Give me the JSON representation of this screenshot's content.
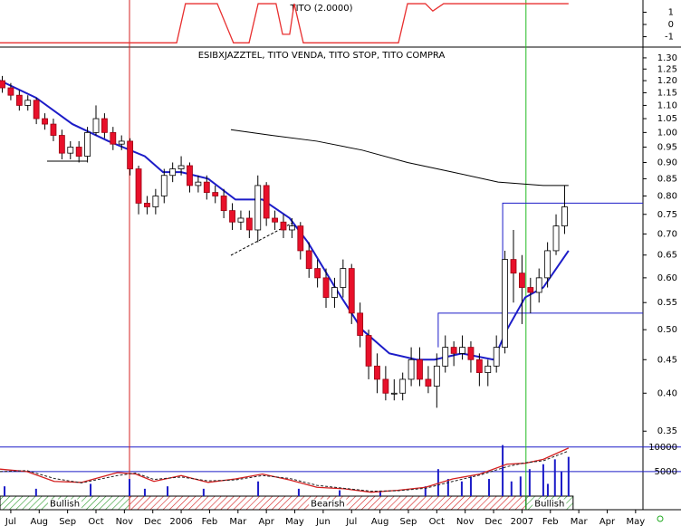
{
  "chart_data": {
    "type": "candlestick",
    "title": "ESIBXJAZZTEL, TITO VENDA, TITO STOP, TITO COMPRA",
    "log_scale": true,
    "xlim": [
      -0.38,
      22.26
    ],
    "xticks": [
      {
        "value": 0,
        "label": "Jul"
      },
      {
        "value": 1,
        "label": "Aug"
      },
      {
        "value": 2,
        "label": "Sep"
      },
      {
        "value": 3,
        "label": "Oct"
      },
      {
        "value": 4,
        "label": "Nov"
      },
      {
        "value": 5,
        "label": "Dec"
      },
      {
        "value": 6,
        "label": "2006"
      },
      {
        "value": 7,
        "label": "Feb"
      },
      {
        "value": 8,
        "label": "Mar"
      },
      {
        "value": 9,
        "label": "Apr"
      },
      {
        "value": 10,
        "label": "May"
      },
      {
        "value": 11,
        "label": "Jun"
      },
      {
        "value": 12,
        "label": "Jul"
      },
      {
        "value": 13,
        "label": "Aug"
      },
      {
        "value": 14,
        "label": "Sep"
      },
      {
        "value": 15,
        "label": "Oct"
      },
      {
        "value": 16,
        "label": "Nov"
      },
      {
        "value": 17,
        "label": "Dec"
      },
      {
        "value": 18,
        "label": "2007"
      },
      {
        "value": 19,
        "label": "Feb"
      },
      {
        "value": 20,
        "label": "Mar"
      },
      {
        "value": 21,
        "label": "Apr"
      },
      {
        "value": 22,
        "label": "May"
      }
    ],
    "ylim": [
      0.335,
      1.346
    ],
    "yticks": [
      {
        "value": 1.3,
        "label": "1.30"
      },
      {
        "value": 1.25,
        "label": "1.25"
      },
      {
        "value": 1.2,
        "label": "1.20"
      },
      {
        "value": 1.15,
        "label": "1.15"
      },
      {
        "value": 1.1,
        "label": "1.10"
      },
      {
        "value": 1.05,
        "label": "1.05"
      },
      {
        "value": 1.0,
        "label": "1.00"
      },
      {
        "value": 0.95,
        "label": "0.95"
      },
      {
        "value": 0.9,
        "label": "0.90"
      },
      {
        "value": 0.85,
        "label": "0.85"
      },
      {
        "value": 0.8,
        "label": "0.80"
      },
      {
        "value": 0.75,
        "label": "0.75"
      },
      {
        "value": 0.7,
        "label": "0.70"
      },
      {
        "value": 0.65,
        "label": "0.65"
      },
      {
        "value": 0.6,
        "label": "0.60"
      },
      {
        "value": 0.55,
        "label": "0.55"
      },
      {
        "value": 0.5,
        "label": "0.50"
      },
      {
        "value": 0.45,
        "label": "0.45"
      },
      {
        "value": 0.4,
        "label": "0.40"
      },
      {
        "value": 0.35,
        "label": "0.35"
      }
    ],
    "x": [
      -0.3,
      0,
      0.3,
      0.6,
      0.9,
      1.2,
      1.5,
      1.8,
      2.1,
      2.4,
      2.7,
      3,
      3.3,
      3.6,
      3.9,
      4.2,
      4.5,
      4.8,
      5.1,
      5.4,
      5.7,
      6,
      6.3,
      6.6,
      6.9,
      7.2,
      7.5,
      7.8,
      8.1,
      8.4,
      8.7,
      9,
      9.3,
      9.6,
      9.9,
      10.2,
      10.5,
      10.8,
      11.1,
      11.4,
      11.7,
      12,
      12.3,
      12.6,
      12.9,
      13.2,
      13.5,
      13.8,
      14.1,
      14.4,
      14.7,
      15,
      15.3,
      15.6,
      15.9,
      16.2,
      16.5,
      16.8,
      17.1,
      17.4,
      17.7,
      18,
      18.3,
      18.6,
      18.9,
      19.2,
      19.5
    ],
    "open": [
      1.2,
      1.17,
      1.14,
      1.1,
      1.12,
      1.05,
      1.03,
      0.99,
      0.93,
      0.95,
      0.92,
      1.0,
      1.05,
      1.0,
      0.96,
      0.97,
      0.88,
      0.78,
      0.77,
      0.8,
      0.86,
      0.88,
      0.89,
      0.83,
      0.84,
      0.81,
      0.8,
      0.76,
      0.73,
      0.74,
      0.71,
      0.83,
      0.74,
      0.73,
      0.71,
      0.72,
      0.66,
      0.62,
      0.6,
      0.56,
      0.58,
      0.62,
      0.53,
      0.49,
      0.44,
      0.42,
      0.4,
      0.4,
      0.42,
      0.45,
      0.42,
      0.41,
      0.44,
      0.47,
      0.46,
      0.47,
      0.45,
      0.43,
      0.44,
      0.47,
      0.64,
      0.61,
      0.58,
      0.57,
      0.6,
      0.66,
      0.72
    ],
    "high": [
      1.22,
      1.19,
      1.16,
      1.14,
      1.13,
      1.07,
      1.05,
      1.01,
      0.97,
      0.97,
      1.02,
      1.1,
      1.07,
      1.02,
      0.99,
      0.98,
      0.89,
      0.8,
      0.82,
      0.88,
      0.9,
      0.92,
      0.9,
      0.86,
      0.86,
      0.83,
      0.82,
      0.78,
      0.76,
      0.76,
      0.86,
      0.84,
      0.76,
      0.75,
      0.74,
      0.73,
      0.68,
      0.64,
      0.62,
      0.6,
      0.64,
      0.63,
      0.55,
      0.5,
      0.46,
      0.44,
      0.42,
      0.43,
      0.47,
      0.47,
      0.44,
      0.46,
      0.49,
      0.48,
      0.49,
      0.48,
      0.46,
      0.45,
      0.49,
      0.66,
      0.71,
      0.65,
      0.6,
      0.62,
      0.68,
      0.75,
      0.83
    ],
    "low": [
      1.15,
      1.12,
      1.08,
      1.08,
      1.03,
      1.01,
      0.97,
      0.91,
      0.91,
      0.9,
      0.9,
      0.99,
      0.98,
      0.94,
      0.94,
      0.86,
      0.75,
      0.75,
      0.75,
      0.78,
      0.84,
      0.86,
      0.81,
      0.81,
      0.79,
      0.78,
      0.74,
      0.71,
      0.71,
      0.69,
      0.68,
      0.72,
      0.71,
      0.69,
      0.69,
      0.64,
      0.6,
      0.58,
      0.54,
      0.54,
      0.56,
      0.51,
      0.47,
      0.42,
      0.4,
      0.39,
      0.39,
      0.39,
      0.41,
      0.41,
      0.4,
      0.38,
      0.43,
      0.44,
      0.45,
      0.43,
      0.41,
      0.41,
      0.43,
      0.46,
      0.55,
      0.51,
      0.53,
      0.55,
      0.58,
      0.65,
      0.7
    ],
    "close": [
      1.17,
      1.14,
      1.1,
      1.12,
      1.05,
      1.03,
      0.99,
      0.93,
      0.95,
      0.92,
      1.0,
      1.05,
      1.0,
      0.96,
      0.97,
      0.88,
      0.78,
      0.77,
      0.8,
      0.86,
      0.88,
      0.89,
      0.83,
      0.84,
      0.81,
      0.8,
      0.76,
      0.73,
      0.74,
      0.71,
      0.83,
      0.74,
      0.73,
      0.71,
      0.72,
      0.66,
      0.62,
      0.6,
      0.56,
      0.58,
      0.62,
      0.53,
      0.49,
      0.44,
      0.42,
      0.4,
      0.4,
      0.42,
      0.45,
      0.42,
      0.41,
      0.44,
      0.47,
      0.46,
      0.47,
      0.45,
      0.43,
      0.44,
      0.47,
      0.64,
      0.61,
      0.58,
      0.57,
      0.6,
      0.66,
      0.72,
      0.77
    ],
    "up_color": "#ffffff",
    "down_color": "#e8102a",
    "lines": [
      {
        "color": "#1c1cc8",
        "x": [
          -0.38,
          0.89,
          2.17,
          3.44,
          4.72,
          5.36,
          6.0,
          6.95,
          7.91,
          8.86,
          9.82,
          10.46,
          11.42,
          12.37,
          13.33,
          14.29,
          14.92,
          15.88,
          17.0,
          17.47,
          18.11,
          18.75,
          19.64
        ],
        "values": [
          1.2,
          1.13,
          1.03,
          0.97,
          0.92,
          0.87,
          0.87,
          0.85,
          0.79,
          0.79,
          0.74,
          0.68,
          0.58,
          0.5,
          0.46,
          0.45,
          0.45,
          0.46,
          0.45,
          0.5,
          0.56,
          0.58,
          0.66
        ]
      },
      {
        "color": "#000000",
        "x": [
          7.75,
          9.18,
          10.78,
          12.37,
          13.97,
          15.56,
          17.16,
          18.75,
          19.64
        ],
        "values": [
          1.01,
          0.99,
          0.97,
          0.94,
          0.9,
          0.87,
          0.84,
          0.83,
          0.83
        ]
      }
    ],
    "levels": [
      {
        "y": 0.78,
        "x": 17.32,
        "y0": 0.5,
        "color": "#1c1cc8"
      },
      {
        "y": 0.53,
        "x": 15.05,
        "y0": 0.47,
        "color": "#1c1cc8"
      }
    ],
    "vlines": [
      {
        "x": 4.18,
        "color": "#d42020"
      },
      {
        "x": 18.14,
        "color": "#22bb22"
      }
    ],
    "indicator": {
      "title": "TITO (2.0000)",
      "ylim": [
        -1.7,
        2.0
      ],
      "yticks": [
        1,
        0,
        -1
      ],
      "color": "#e83030",
      "x": [
        -0.38,
        5.84,
        6.15,
        7.27,
        7.84,
        8.39,
        8.71,
        9.34,
        9.57,
        9.82,
        9.98,
        10.3,
        13.65,
        13.97,
        14.6,
        14.86,
        15.24,
        19.64
      ],
      "values": [
        -1.5,
        -1.5,
        1.7,
        1.7,
        -1.5,
        -1.5,
        1.7,
        1.7,
        -0.8,
        -0.8,
        1.7,
        -1.5,
        -1.5,
        1.7,
        1.7,
        1.1,
        1.7,
        1.7
      ]
    },
    "volume": {
      "ylim": [
        0,
        10700
      ],
      "yticks": [
        10000,
        5000
      ],
      "color": "#1c1cc8",
      "x": [
        -0.22,
        0.89,
        2.81,
        4.18,
        4.72,
        5.52,
        6.79,
        8.71,
        10.14,
        11.58,
        13.01,
        14.6,
        15.05,
        15.4,
        15.88,
        16.2,
        16.84,
        17.32,
        17.63,
        17.95,
        18.27,
        18.75,
        18.91,
        19.16,
        19.39,
        19.64
      ],
      "values": [
        2000,
        1500,
        2500,
        3500,
        1500,
        2000,
        1500,
        3000,
        1500,
        1200,
        1000,
        2000,
        5500,
        3500,
        3000,
        4000,
        3500,
        10400,
        3000,
        4000,
        5500,
        6500,
        2500,
        7500,
        5000,
        8000
      ],
      "lines": [
        {
          "color": "#d42020",
          "dashed": false,
          "x": [
            -0.38,
            0.57,
            1.53,
            2.49,
            3.76,
            4.4,
            5.04,
            6.0,
            6.95,
            7.91,
            8.86,
            9.82,
            10.78,
            11.73,
            12.69,
            13.65,
            14.6,
            15.56,
            16.52,
            17.47,
            18.11,
            18.75,
            19.64
          ],
          "values": [
            5500,
            5000,
            3000,
            2800,
            4800,
            4500,
            3000,
            4200,
            2800,
            3500,
            4500,
            3300,
            1800,
            1500,
            800,
            1200,
            1800,
            3500,
            4500,
            6500,
            6700,
            7500,
            9800
          ]
        },
        {
          "color": "#222222",
          "dashed": true,
          "x": [
            -0.38,
            0.57,
            1.53,
            2.49,
            3.76,
            4.4,
            5.04,
            6.0,
            6.95,
            7.91,
            8.86,
            9.82,
            10.78,
            11.73,
            12.69,
            13.65,
            14.6,
            15.56,
            16.52,
            17.47,
            18.11,
            18.75,
            19.64
          ],
          "values": [
            5000,
            5200,
            3600,
            2700,
            4200,
            4700,
            3400,
            3900,
            3100,
            3300,
            4200,
            3600,
            2200,
            1600,
            1000,
            1100,
            1600,
            3000,
            4300,
            6000,
            6800,
            7200,
            9200
          ]
        }
      ]
    },
    "regimes": [
      {
        "label": "Bullish",
        "from": -0.38,
        "to": 4.18,
        "color": "#2a9a2a"
      },
      {
        "label": "Bearish",
        "from": 4.18,
        "to": 18.14,
        "color": "#d42020"
      },
      {
        "label": "Bullish",
        "from": 18.14,
        "to": 19.8,
        "color": "#2a9a2a"
      }
    ]
  }
}
